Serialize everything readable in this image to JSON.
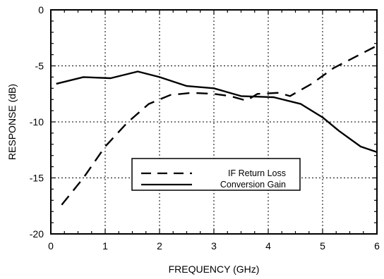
{
  "chart_data": {
    "type": "line",
    "title": "",
    "xlabel": "FREQUENCY (GHz)",
    "ylabel": "RESPONSE (dB)",
    "xlim": [
      0,
      6
    ],
    "ylim": [
      -20,
      0
    ],
    "xticks": [
      "0",
      "1",
      "2",
      "3",
      "4",
      "5",
      "6"
    ],
    "yticks": [
      "0",
      "-5",
      "-10",
      "-15",
      "-20"
    ],
    "xtick_values": [
      0,
      1,
      2,
      3,
      4,
      5,
      6
    ],
    "ytick_values": [
      0,
      -5,
      -10,
      -15,
      -20
    ],
    "grid": true,
    "grid_style": "dotted",
    "legend_position": "lower-center",
    "series": [
      {
        "name": "IF Return Loss",
        "line_style": "dashed",
        "color": "#000000",
        "x": [
          0.2,
          0.6,
          1.0,
          1.4,
          1.8,
          2.2,
          2.6,
          3.0,
          3.3,
          3.6,
          3.8,
          4.2,
          4.4,
          4.8,
          5.2,
          5.6,
          6.0
        ],
        "y": [
          -17.4,
          -15.0,
          -12.2,
          -10.1,
          -8.4,
          -7.6,
          -7.4,
          -7.5,
          -7.7,
          -8.1,
          -7.5,
          -7.4,
          -7.7,
          -6.6,
          -5.2,
          -4.2,
          -3.2
        ]
      },
      {
        "name": "Conversion Gain",
        "line_style": "solid",
        "color": "#000000",
        "x": [
          0.1,
          0.6,
          1.1,
          1.6,
          2.0,
          2.5,
          3.0,
          3.5,
          4.1,
          4.6,
          5.0,
          5.3,
          5.7,
          6.0
        ],
        "y": [
          -6.6,
          -6.0,
          -6.1,
          -5.5,
          -6.0,
          -6.8,
          -7.0,
          -7.7,
          -7.8,
          -8.4,
          -9.6,
          -10.8,
          -12.2,
          -12.7
        ]
      }
    ]
  }
}
